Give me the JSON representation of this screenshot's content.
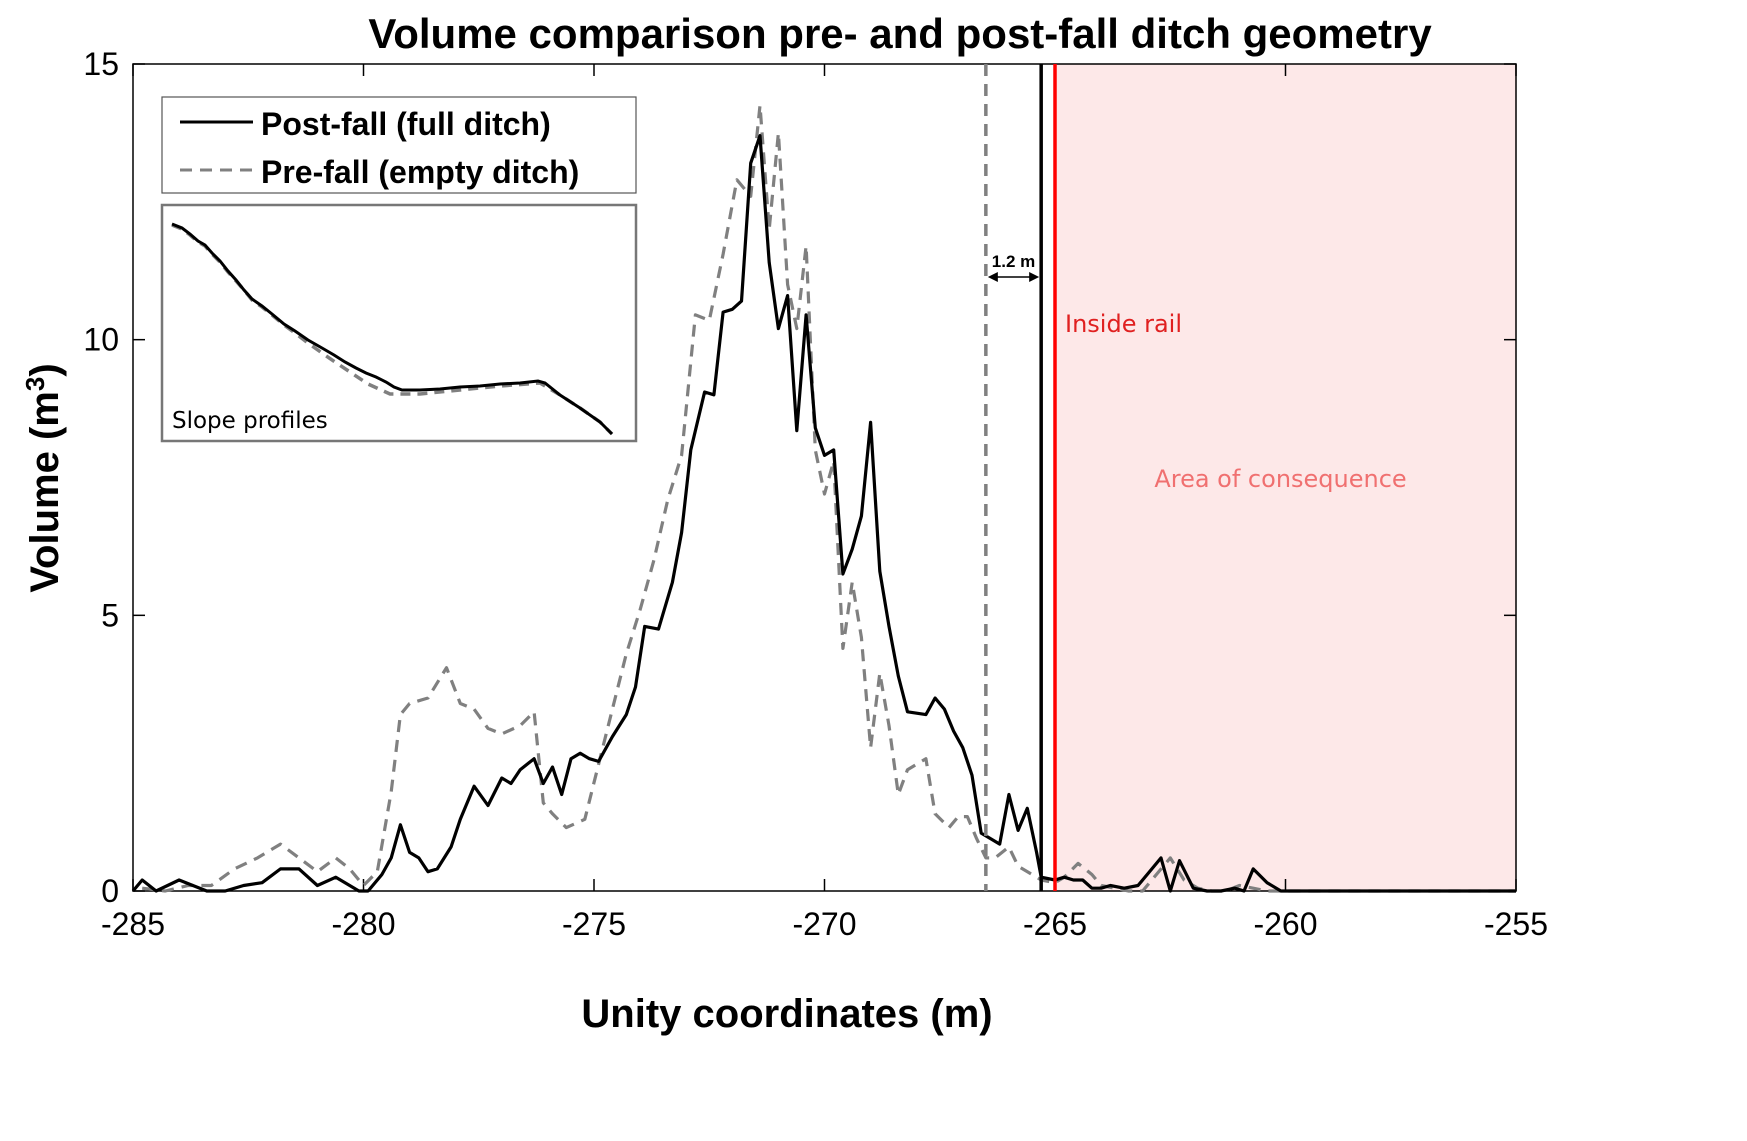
{
  "chart_data": {
    "type": "line",
    "title": "Volume comparison pre- and post-fall ditch geometry",
    "xlabel": "Unity coordinates (m)",
    "ylabel_main": "Volume (m",
    "ylabel_sup": "3",
    "ylabel_close": ")",
    "xlim": [
      -285,
      -255
    ],
    "ylim": [
      0,
      15
    ],
    "xticks": [
      -285,
      -280,
      -275,
      -270,
      -265,
      -260,
      -255
    ],
    "yticks": [
      0,
      5,
      10,
      15
    ],
    "xtick_labels": [
      "-285",
      "-280",
      "-275",
      "-270",
      "-265",
      "-260",
      "-255"
    ],
    "ytick_labels": [
      "0",
      "5",
      "10",
      "15"
    ],
    "legend": {
      "placement": "top-left",
      "entries": [
        "Post-fall (full ditch)",
        "Pre-fall (empty ditch)"
      ]
    },
    "series": [
      {
        "name": "Post-fall (full ditch)",
        "color": "#000000",
        "style": "solid",
        "x": [
          -285.0,
          -284.8,
          -284.5,
          -284.0,
          -283.7,
          -283.4,
          -283.0,
          -282.6,
          -282.2,
          -281.8,
          -281.4,
          -281.0,
          -280.6,
          -280.3,
          -280.1,
          -279.9,
          -279.6,
          -279.4,
          -279.2,
          -279.0,
          -278.8,
          -278.6,
          -278.4,
          -278.1,
          -277.9,
          -277.6,
          -277.3,
          -277.0,
          -276.8,
          -276.6,
          -276.3,
          -276.1,
          -275.9,
          -275.7,
          -275.5,
          -275.3,
          -275.1,
          -274.9,
          -274.6,
          -274.3,
          -274.1,
          -273.9,
          -273.6,
          -273.3,
          -273.1,
          -272.9,
          -272.6,
          -272.4,
          -272.2,
          -272.0,
          -271.8,
          -271.6,
          -271.4,
          -271.2,
          -271.0,
          -270.8,
          -270.6,
          -270.4,
          -270.2,
          -270.0,
          -269.8,
          -269.6,
          -269.4,
          -269.2,
          -269.0,
          -268.8,
          -268.6,
          -268.4,
          -268.2,
          -267.8,
          -267.6,
          -267.4,
          -267.2,
          -267.0,
          -266.8,
          -266.6,
          -266.4,
          -266.2,
          -266.0,
          -265.8,
          -265.6,
          -265.4,
          -265.3,
          -265.0,
          -264.8,
          -264.6,
          -264.4,
          -264.2,
          -264.0,
          -263.8,
          -263.5,
          -263.2,
          -263.0,
          -262.7,
          -262.5,
          -262.3,
          -262.0,
          -261.7,
          -261.4,
          -261.1,
          -260.9,
          -260.7,
          -260.4,
          -260.1,
          -259.8,
          -259.6,
          -259.3,
          -259.0,
          -258.7,
          -258.4,
          -258.0,
          -257.0,
          -256.0,
          -255.0
        ],
        "y": [
          0.0,
          0.2,
          0.0,
          0.2,
          0.1,
          0.0,
          0.0,
          0.1,
          0.15,
          0.4,
          0.4,
          0.1,
          0.25,
          0.1,
          0.0,
          0.0,
          0.3,
          0.6,
          1.2,
          0.7,
          0.6,
          0.35,
          0.4,
          0.8,
          1.3,
          1.9,
          1.55,
          2.05,
          1.95,
          2.2,
          2.4,
          1.95,
          2.25,
          1.75,
          2.4,
          2.5,
          2.4,
          2.35,
          2.8,
          3.2,
          3.7,
          4.8,
          4.75,
          5.6,
          6.5,
          8.0,
          9.05,
          9.0,
          10.5,
          10.55,
          10.7,
          13.2,
          13.7,
          11.4,
          10.2,
          10.8,
          8.35,
          10.45,
          8.4,
          7.9,
          8.0,
          5.75,
          6.2,
          6.8,
          8.5,
          5.8,
          4.8,
          3.9,
          3.25,
          3.2,
          3.5,
          3.3,
          2.9,
          2.6,
          2.1,
          1.05,
          0.95,
          0.85,
          1.75,
          1.1,
          1.5,
          0.7,
          0.25,
          0.2,
          0.25,
          0.2,
          0.2,
          0.05,
          0.05,
          0.1,
          0.05,
          0.1,
          0.3,
          0.6,
          0.0,
          0.55,
          0.05,
          0.0,
          0.0,
          0.05,
          0.0,
          0.4,
          0.15,
          0.0,
          0.0,
          0.0,
          0.0,
          0.0,
          0.0,
          0.0,
          0.0,
          0.0,
          0.0,
          0.0
        ],
        "y_note": "",
        "length_check": "",
        "last": 0.0
      },
      {
        "name": "Pre-fall (empty ditch)",
        "color": "#808080",
        "style": "dashed",
        "x": [
          -284.8,
          -284.3,
          -283.8,
          -283.3,
          -282.8,
          -282.3,
          -281.8,
          -281.4,
          -281.0,
          -280.6,
          -280.3,
          -280.0,
          -279.7,
          -279.4,
          -279.2,
          -279.0,
          -278.6,
          -278.2,
          -277.9,
          -277.6,
          -277.3,
          -277.0,
          -276.6,
          -276.3,
          -276.1,
          -275.9,
          -275.6,
          -275.2,
          -274.9,
          -274.6,
          -274.3,
          -274.0,
          -273.7,
          -273.4,
          -273.1,
          -272.8,
          -272.5,
          -272.2,
          -271.9,
          -271.6,
          -271.4,
          -271.2,
          -271.0,
          -270.8,
          -270.6,
          -270.4,
          -270.2,
          -270.0,
          -269.8,
          -269.6,
          -269.4,
          -269.2,
          -269.0,
          -268.8,
          -268.6,
          -268.4,
          -268.2,
          -267.8,
          -267.6,
          -267.3,
          -267.1,
          -266.9,
          -266.7,
          -266.5,
          -266.3,
          -266.0,
          -265.8,
          -265.5,
          -265.3,
          -265.0,
          -264.8,
          -264.5,
          -264.2,
          -264.0,
          -263.7,
          -263.4,
          -263.1,
          -262.8,
          -262.5,
          -262.2,
          -261.9,
          -261.6,
          -261.3,
          -261.0,
          -260.7,
          -260.4,
          -260.1,
          -259.8,
          -259.5,
          -259.2,
          -258.9,
          -258.6,
          -258.3,
          -258.0,
          -257.0,
          -256.0,
          -255.0
        ],
        "y": [
          0.05,
          0.0,
          0.1,
          0.1,
          0.4,
          0.6,
          0.85,
          0.6,
          0.35,
          0.6,
          0.4,
          0.1,
          0.35,
          1.8,
          3.2,
          3.4,
          3.5,
          4.05,
          3.4,
          3.3,
          2.95,
          2.85,
          3.0,
          3.25,
          1.6,
          1.4,
          1.15,
          1.3,
          2.3,
          3.3,
          4.3,
          5.1,
          6.0,
          7.1,
          7.9,
          10.45,
          10.35,
          11.55,
          12.9,
          12.6,
          14.25,
          12.0,
          13.75,
          11.0,
          10.2,
          11.7,
          8.0,
          7.2,
          7.8,
          4.4,
          5.6,
          4.6,
          2.6,
          3.95,
          3.0,
          1.75,
          2.2,
          2.4,
          1.4,
          1.15,
          1.35,
          1.35,
          0.95,
          0.6,
          0.6,
          0.8,
          0.45,
          0.3,
          0.2,
          0.15,
          0.25,
          0.5,
          0.3,
          0.1,
          0.05,
          0.0,
          0.0,
          0.3,
          0.6,
          0.2,
          0.05,
          0.0,
          0.0,
          0.1,
          0.05,
          0.0,
          0.0,
          0.0,
          0.0,
          0.0,
          0.0,
          0.0,
          0.0,
          0.0,
          0.0,
          0.0,
          0.0
        ]
      }
    ],
    "vertical_lines": [
      {
        "x": -266.5,
        "style": "dashed",
        "color": "#808080"
      },
      {
        "x": -265.3,
        "style": "solid",
        "color": "#000000"
      },
      {
        "x": -265.0,
        "style": "solid",
        "color": "#ff0000"
      }
    ],
    "shaded_region": {
      "x_start": -265.0,
      "x_end": -255.0,
      "color": "#fde8e8"
    },
    "annotations": {
      "distance_label": "1.2 m",
      "inside_rail": "Inside rail",
      "inside_rail_color": "#e02020",
      "area_of_consequence": "Area of consequence",
      "area_color": "#f07070",
      "inset_label": "Slope profiles"
    }
  }
}
